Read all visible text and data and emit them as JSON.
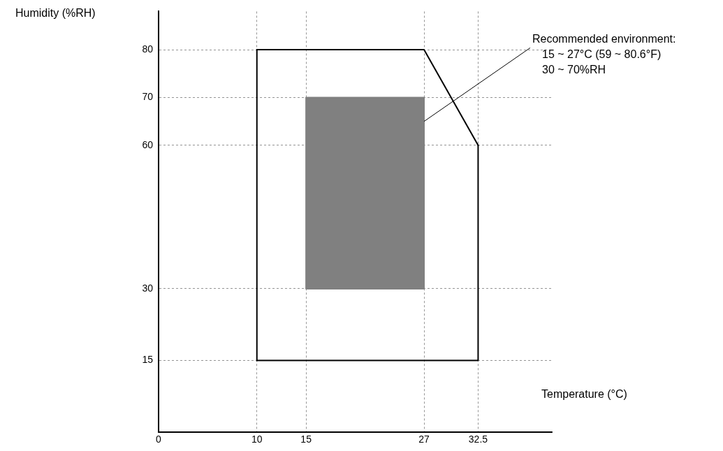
{
  "chart_data": {
    "type": "line",
    "xlabel": "Temperature (°C)",
    "ylabel": "Humidity (%RH)",
    "xlim": [
      0,
      40
    ],
    "ylim": [
      0,
      88
    ],
    "xticks": [
      0,
      10,
      15,
      27,
      32.5
    ],
    "yticks": [
      15,
      30,
      60,
      70,
      80
    ],
    "grid": true,
    "line_style": "solid",
    "marker": "none",
    "series": [
      {
        "type": "line",
        "color": "#000000",
        "x": [
          10,
          10
        ],
        "values": [
          15,
          80
        ]
      },
      {
        "type": "line",
        "color": "#000000",
        "x": [
          10,
          27,
          32.5
        ],
        "values": [
          80,
          80,
          60
        ]
      },
      {
        "type": "line",
        "color": "#000000",
        "x": [
          32.5,
          32.5,
          10
        ],
        "values": [
          60,
          15,
          15
        ]
      },
      {
        "type": "area",
        "color": "#808080",
        "x": [
          15,
          15,
          27,
          27,
          15
        ],
        "values": [
          30,
          70,
          70,
          30,
          30
        ]
      }
    ],
    "annotations": [
      {
        "text": "Recommended environment:\n15 ~ 27°C (59 ~ 80.6°F)\n30 ~ 70%RH",
        "x": 27,
        "y": 65
      }
    ]
  }
}
